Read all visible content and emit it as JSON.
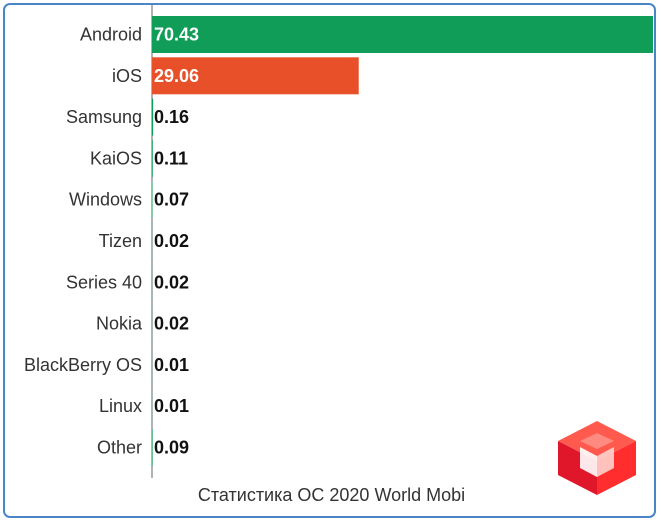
{
  "caption": "Статистика ОС 2020 World Mobi",
  "chart_data": {
    "type": "bar",
    "orientation": "horizontal",
    "categories": [
      "Android",
      "iOS",
      "Samsung",
      "KaiOS",
      "Windows",
      "Tizen",
      "Series 40",
      "Nokia",
      "BlackBerry OS",
      "Linux",
      "Other"
    ],
    "values": [
      70.43,
      29.06,
      0.16,
      0.11,
      0.07,
      0.02,
      0.02,
      0.02,
      0.01,
      0.01,
      0.09
    ],
    "value_labels": [
      "70.43",
      "29.06",
      "0.16",
      "0.11",
      "0.07",
      "0.02",
      "0.02",
      "0.02",
      "0.01",
      "0.01",
      "0.09"
    ],
    "colors": [
      "#0f9d58",
      "#e8502a",
      "#0f9d58",
      "#0f9d58",
      "#0f9d58",
      "#0f9d58",
      "#0f9d58",
      "#0f9d58",
      "#0f9d58",
      "#0f9d58",
      "#0f9d58"
    ],
    "xlim": [
      0,
      70.43
    ],
    "grid": false,
    "legend": "none"
  },
  "logo": {
    "icon": "red-cube-logo-icon",
    "colors": [
      "#ff3b30",
      "#c8102e",
      "#ff6a5a"
    ]
  }
}
